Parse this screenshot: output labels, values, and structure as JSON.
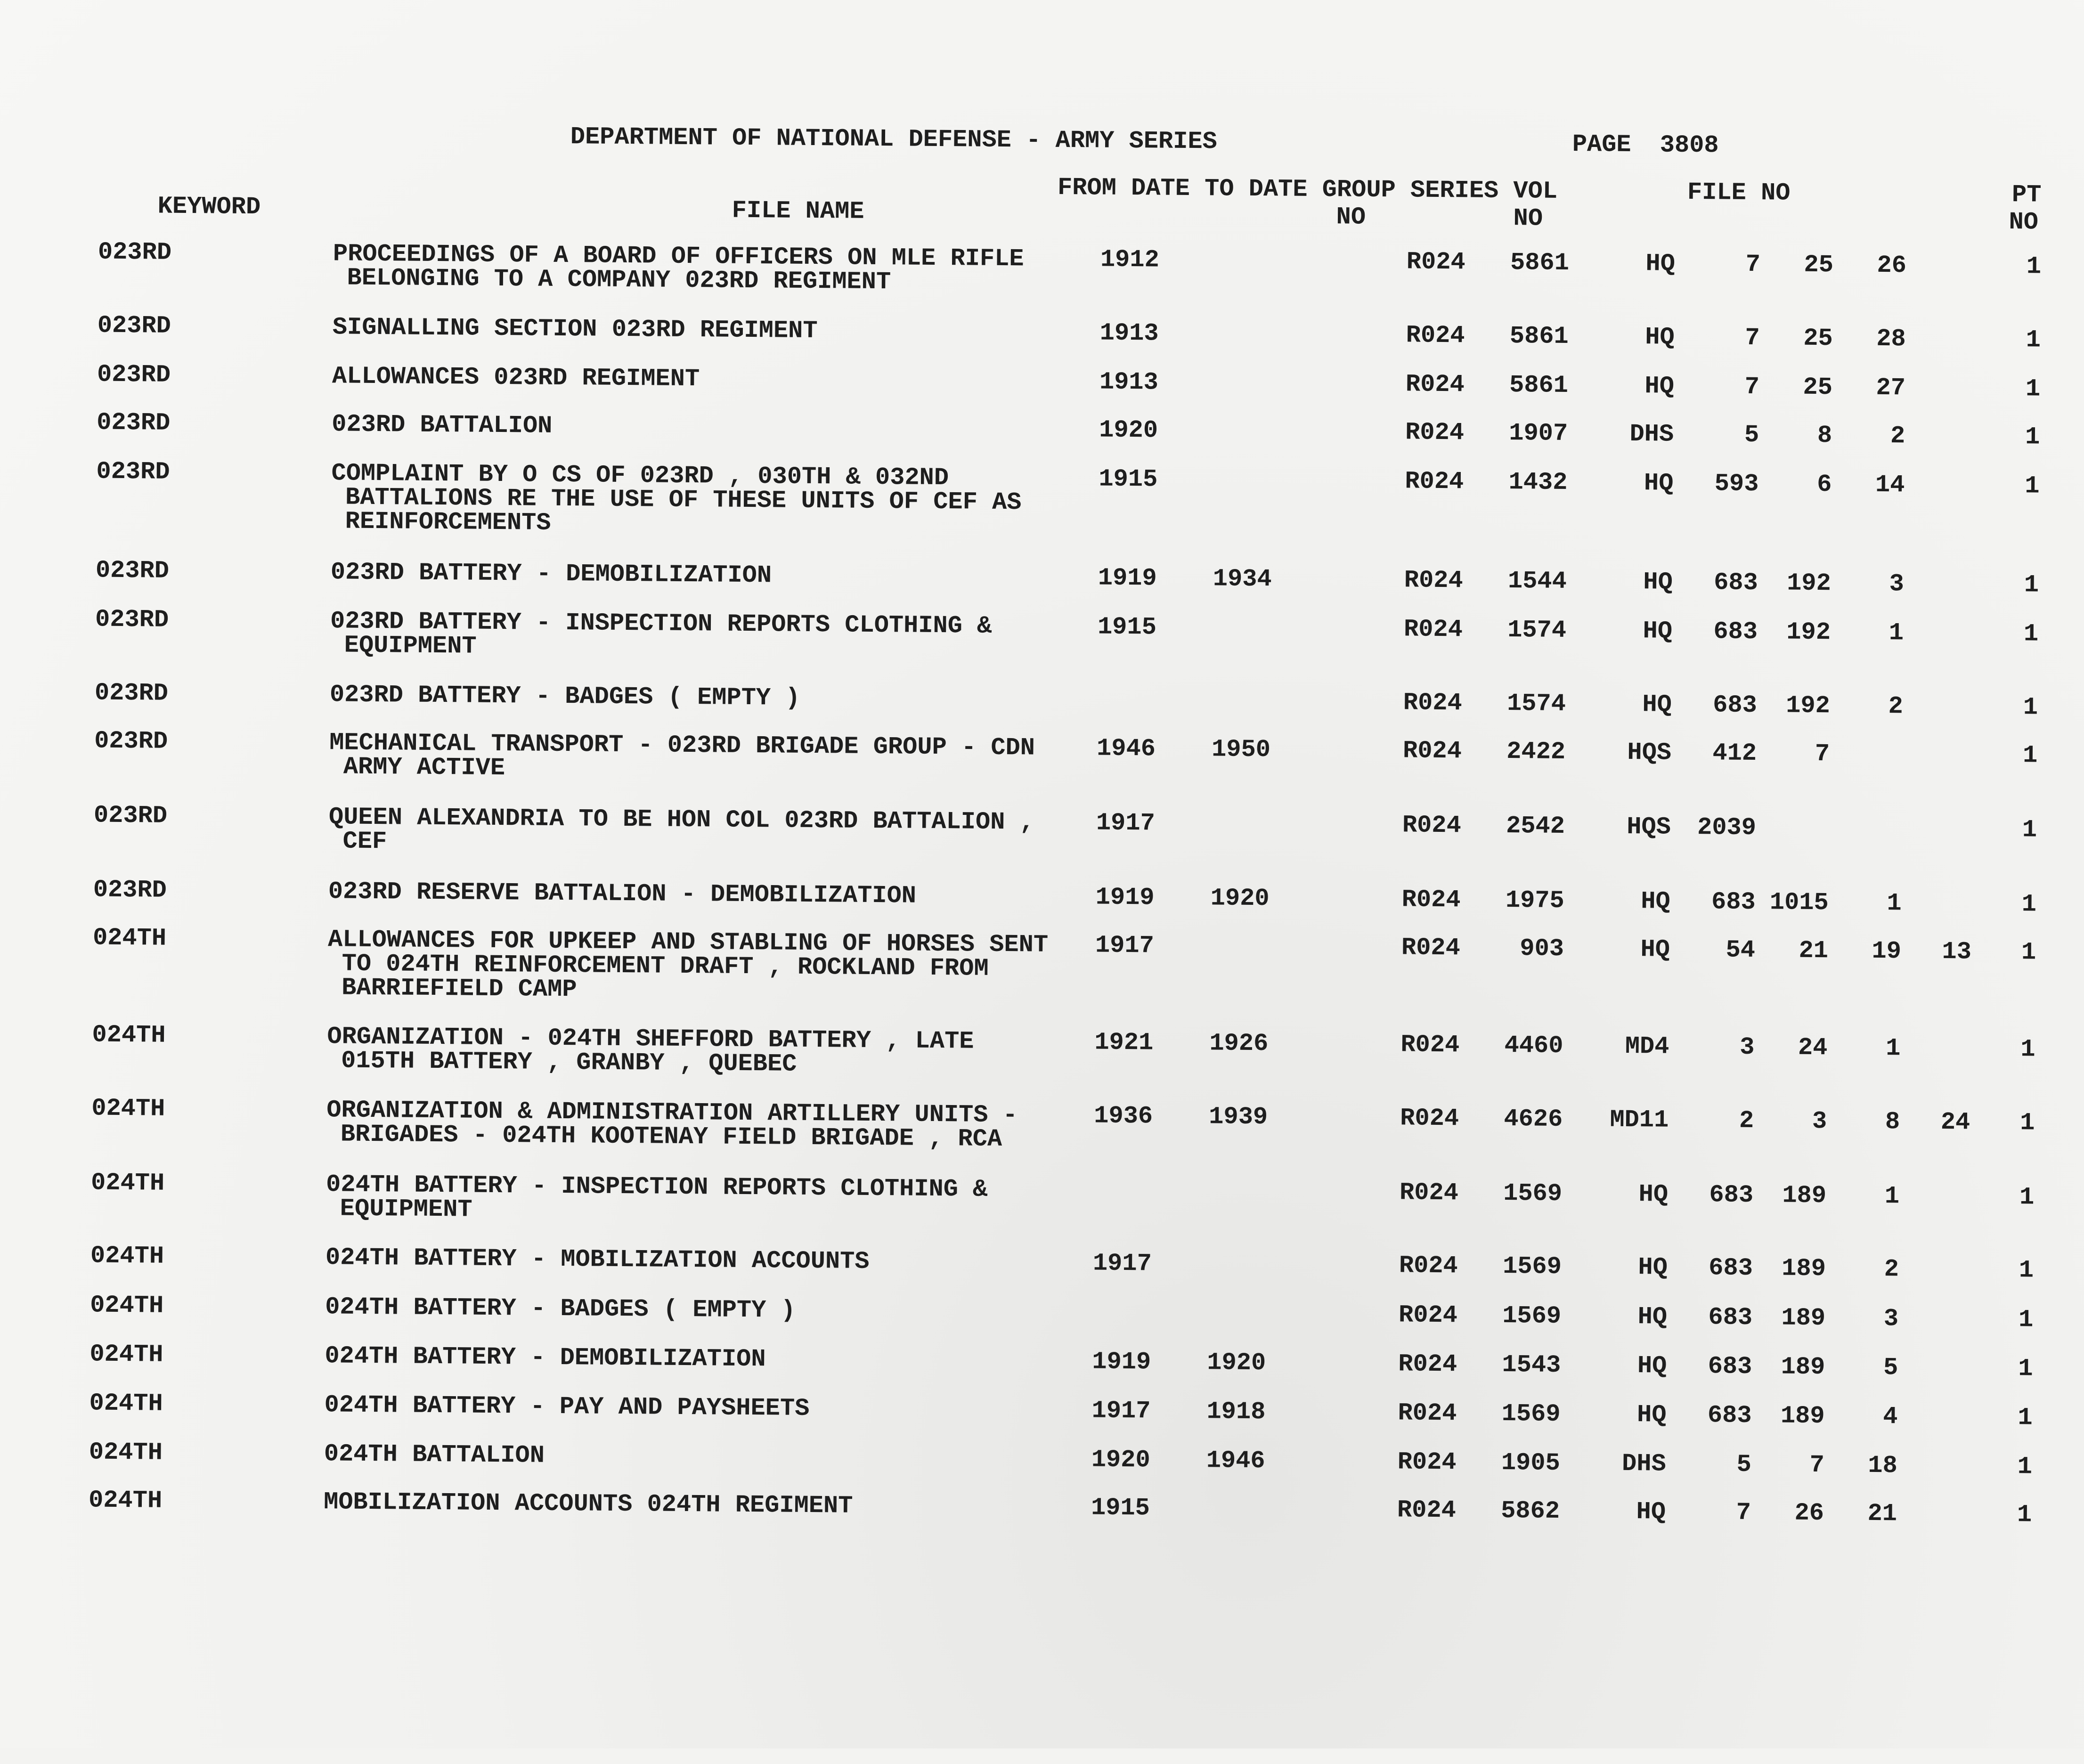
{
  "header": {
    "title": "DEPARTMENT OF NATIONAL DEFENSE - ARMY SERIES",
    "page_label": "PAGE",
    "page_number": "3808"
  },
  "columns": {
    "keyword": "KEYWORD",
    "file_name": "FILE NAME",
    "dates_line1": "FROM DATE TO DATE GROUP SERIES VOL",
    "group_no": "NO",
    "vol_no": "NO",
    "file_no": "FILE NO",
    "pt": "PT",
    "pt_no": "NO"
  },
  "rows": [
    {
      "keyword": "023RD",
      "file_name": [
        "PROCEEDINGS OF A BOARD OF OFFICERS ON MLE RIFLE",
        "BELONGING TO A COMPANY 023RD REGIMENT"
      ],
      "from": "1912",
      "to": "",
      "series": "R024",
      "vol": "5861",
      "office": "HQ",
      "file_no": [
        "7",
        "25",
        "26",
        ""
      ],
      "pt": "1"
    },
    {
      "keyword": "023RD",
      "file_name": [
        "SIGNALLING SECTION 023RD REGIMENT"
      ],
      "from": "1913",
      "to": "",
      "series": "R024",
      "vol": "5861",
      "office": "HQ",
      "file_no": [
        "7",
        "25",
        "28",
        ""
      ],
      "pt": "1"
    },
    {
      "keyword": "023RD",
      "file_name": [
        "ALLOWANCES 023RD REGIMENT"
      ],
      "from": "1913",
      "to": "",
      "series": "R024",
      "vol": "5861",
      "office": "HQ",
      "file_no": [
        "7",
        "25",
        "27",
        ""
      ],
      "pt": "1"
    },
    {
      "keyword": "023RD",
      "file_name": [
        "023RD BATTALION"
      ],
      "from": "1920",
      "to": "",
      "series": "R024",
      "vol": "1907",
      "office": "DHS",
      "file_no": [
        "5",
        "8",
        "2",
        ""
      ],
      "pt": "1"
    },
    {
      "keyword": "023RD",
      "file_name": [
        "COMPLAINT BY O CS OF 023RD , 030TH & 032ND",
        "BATTALIONS RE THE USE OF THESE UNITS OF CEF AS",
        "REINFORCEMENTS"
      ],
      "from": "1915",
      "to": "",
      "series": "R024",
      "vol": "1432",
      "office": "HQ",
      "file_no": [
        "593",
        "6",
        "14",
        ""
      ],
      "pt": "1"
    },
    {
      "keyword": "023RD",
      "file_name": [
        "023RD BATTERY - DEMOBILIZATION"
      ],
      "from": "1919",
      "to": "1934",
      "series": "R024",
      "vol": "1544",
      "office": "HQ",
      "file_no": [
        "683",
        "192",
        "3",
        ""
      ],
      "pt": "1"
    },
    {
      "keyword": "023RD",
      "file_name": [
        "023RD BATTERY - INSPECTION REPORTS CLOTHING &",
        "EQUIPMENT"
      ],
      "from": "1915",
      "to": "",
      "series": "R024",
      "vol": "1574",
      "office": "HQ",
      "file_no": [
        "683",
        "192",
        "1",
        ""
      ],
      "pt": "1"
    },
    {
      "keyword": "023RD",
      "file_name": [
        "023RD BATTERY - BADGES ( EMPTY )"
      ],
      "from": "",
      "to": "",
      "series": "R024",
      "vol": "1574",
      "office": "HQ",
      "file_no": [
        "683",
        "192",
        "2",
        ""
      ],
      "pt": "1"
    },
    {
      "keyword": "023RD",
      "file_name": [
        "MECHANICAL TRANSPORT - 023RD BRIGADE GROUP - CDN",
        "ARMY ACTIVE"
      ],
      "from": "1946",
      "to": "1950",
      "series": "R024",
      "vol": "2422",
      "office": "HQS",
      "file_no": [
        "412",
        "7",
        "",
        ""
      ],
      "pt": "1"
    },
    {
      "keyword": "023RD",
      "file_name": [
        "QUEEN ALEXANDRIA TO BE HON COL 023RD BATTALION ,",
        "CEF"
      ],
      "from": "1917",
      "to": "",
      "series": "R024",
      "vol": "2542",
      "office": "HQS",
      "file_no": [
        "2039",
        "",
        "",
        ""
      ],
      "pt": "1"
    },
    {
      "keyword": "023RD",
      "file_name": [
        "023RD RESERVE BATTALION - DEMOBILIZATION"
      ],
      "from": "1919",
      "to": "1920",
      "series": "R024",
      "vol": "1975",
      "office": "HQ",
      "file_no": [
        "683",
        "1015",
        "1",
        ""
      ],
      "pt": "1"
    },
    {
      "keyword": "024TH",
      "file_name": [
        "ALLOWANCES FOR UPKEEP AND STABLING OF HORSES SENT",
        "TO 024TH REINFORCEMENT DRAFT , ROCKLAND FROM",
        "BARRIEFIELD CAMP"
      ],
      "from": "1917",
      "to": "",
      "series": "R024",
      "vol": "903",
      "office": "HQ",
      "file_no": [
        "54",
        "21",
        "19",
        "13"
      ],
      "pt": "1"
    },
    {
      "keyword": "024TH",
      "file_name": [
        "ORGANIZATION - 024TH SHEFFORD BATTERY , LATE",
        "015TH BATTERY , GRANBY , QUEBEC"
      ],
      "from": "1921",
      "to": "1926",
      "series": "R024",
      "vol": "4460",
      "office": "MD4",
      "file_no": [
        "3",
        "24",
        "1",
        ""
      ],
      "pt": "1"
    },
    {
      "keyword": "024TH",
      "file_name": [
        "ORGANIZATION & ADMINISTRATION ARTILLERY UNITS -",
        "BRIGADES - 024TH KOOTENAY FIELD BRIGADE , RCA"
      ],
      "from": "1936",
      "to": "1939",
      "series": "R024",
      "vol": "4626",
      "office": "MD11",
      "file_no": [
        "2",
        "3",
        "8",
        "24"
      ],
      "pt": "1"
    },
    {
      "keyword": "024TH",
      "file_name": [
        "024TH BATTERY - INSPECTION REPORTS CLOTHING &",
        "EQUIPMENT"
      ],
      "from": "",
      "to": "",
      "series": "R024",
      "vol": "1569",
      "office": "HQ",
      "file_no": [
        "683",
        "189",
        "1",
        ""
      ],
      "pt": "1"
    },
    {
      "keyword": "024TH",
      "file_name": [
        "024TH BATTERY - MOBILIZATION ACCOUNTS"
      ],
      "from": "1917",
      "to": "",
      "series": "R024",
      "vol": "1569",
      "office": "HQ",
      "file_no": [
        "683",
        "189",
        "2",
        ""
      ],
      "pt": "1"
    },
    {
      "keyword": "024TH",
      "file_name": [
        "024TH BATTERY - BADGES ( EMPTY )"
      ],
      "from": "",
      "to": "",
      "series": "R024",
      "vol": "1569",
      "office": "HQ",
      "file_no": [
        "683",
        "189",
        "3",
        ""
      ],
      "pt": "1"
    },
    {
      "keyword": "024TH",
      "file_name": [
        "024TH BATTERY - DEMOBILIZATION"
      ],
      "from": "1919",
      "to": "1920",
      "series": "R024",
      "vol": "1543",
      "office": "HQ",
      "file_no": [
        "683",
        "189",
        "5",
        ""
      ],
      "pt": "1"
    },
    {
      "keyword": "024TH",
      "file_name": [
        "024TH BATTERY - PAY AND PAYSHEETS"
      ],
      "from": "1917",
      "to": "1918",
      "series": "R024",
      "vol": "1569",
      "office": "HQ",
      "file_no": [
        "683",
        "189",
        "4",
        ""
      ],
      "pt": "1"
    },
    {
      "keyword": "024TH",
      "file_name": [
        "024TH BATTALION"
      ],
      "from": "1920",
      "to": "1946",
      "series": "R024",
      "vol": "1905",
      "office": "DHS",
      "file_no": [
        "5",
        "7",
        "18",
        ""
      ],
      "pt": "1"
    },
    {
      "keyword": "024TH",
      "file_name": [
        "MOBILIZATION ACCOUNTS 024TH REGIMENT"
      ],
      "from": "1915",
      "to": "",
      "series": "R024",
      "vol": "5862",
      "office": "HQ",
      "file_no": [
        "7",
        "26",
        "21",
        ""
      ],
      "pt": "1"
    }
  ]
}
